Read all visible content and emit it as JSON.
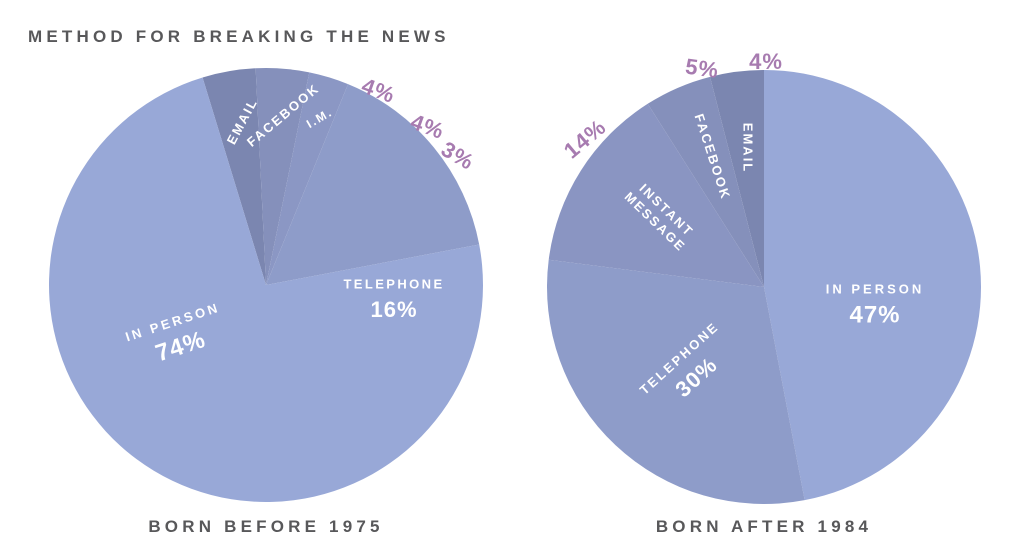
{
  "title": "METHOD FOR BREAKING THE NEWS",
  "chart_data": [
    {
      "type": "pie",
      "title": "BORN BEFORE 1975",
      "slices": [
        {
          "key": "email",
          "label": "EMAIL",
          "value": 4,
          "value_label": "4%",
          "color": "#7b86b0"
        },
        {
          "key": "facebook",
          "label": "FACEBOOK",
          "value": 4,
          "value_label": "4%",
          "color": "#8590bb"
        },
        {
          "key": "im",
          "label": "I.M.",
          "value": 3,
          "value_label": "3%",
          "color": "#8b97c4"
        },
        {
          "key": "telephone",
          "label": "TELEPHONE",
          "value": 16,
          "value_label": "16%",
          "color": "#8e9cc9"
        },
        {
          "key": "in-person",
          "label": "IN PERSON",
          "value": 74,
          "value_label": "74%",
          "color": "#98a8d7"
        }
      ]
    },
    {
      "type": "pie",
      "title": "BORN AFTER 1984",
      "slices": [
        {
          "key": "email",
          "label": "EMAIL",
          "value": 4,
          "value_label": "4%",
          "color": "#7b86b0"
        },
        {
          "key": "in-person",
          "label": "IN PERSON",
          "value": 47,
          "value_label": "47%",
          "color": "#98a8d7"
        },
        {
          "key": "telephone",
          "label": "TELEPHONE",
          "value": 30,
          "value_label": "30%",
          "color": "#8e9cc9"
        },
        {
          "key": "instant-message",
          "label": "INSTANT MESSAGE",
          "value": 14,
          "value_label": "14%",
          "color": "#8a95c2"
        },
        {
          "key": "facebook",
          "label": "FACEBOOK",
          "value": 5,
          "value_label": "5%",
          "color": "#8590bb"
        }
      ]
    }
  ]
}
